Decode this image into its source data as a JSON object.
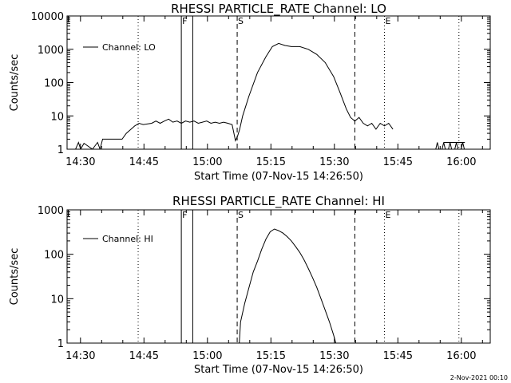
{
  "footer": {
    "timestamp": "2-Nov-2021 00:10"
  },
  "chart_data": [
    {
      "type": "line",
      "title": "RHESSI PARTICLE_RATE Channel: LO",
      "xlabel": "Start Time (07-Nov-15 14:26:50)",
      "ylabel": "Counts/sec",
      "x_unit": "minutes after 14:26:50",
      "xlim": [
        0,
        100
      ],
      "ylim": [
        1,
        10000
      ],
      "yscale": "log",
      "x_ticks": [
        3.17,
        18.17,
        33.17,
        48.17,
        63.17,
        78.17,
        93.17
      ],
      "x_tick_labels": [
        "14:30",
        "14:45",
        "15:00",
        "15:15",
        "15:30",
        "15:45",
        "16:00"
      ],
      "y_ticks": [
        1,
        10,
        100,
        1000,
        10000
      ],
      "y_tick_labels": [
        "1",
        "10",
        "100",
        "1000",
        "10000"
      ],
      "legend": {
        "position": "top-left",
        "entries": [
          "Channel: LO"
        ]
      },
      "markers": [
        {
          "label": "F",
          "x": 27.0,
          "style": "solid"
        },
        {
          "label": "",
          "x": 29.7,
          "style": "solid"
        },
        {
          "label": "S",
          "x": 40.2,
          "style": "dashed"
        },
        {
          "label": "",
          "x": 68.0,
          "style": "dashed"
        },
        {
          "label": "",
          "x": 16.8,
          "style": "dotted"
        },
        {
          "label": "E",
          "x": 75.0,
          "style": "dotted"
        },
        {
          "label": "",
          "x": 92.6,
          "style": "dotted"
        },
        {
          "label": "",
          "x": 0.3,
          "style": "corner"
        }
      ],
      "series": [
        {
          "name": "Channel: LO",
          "x": [
            2,
            2.7,
            3.2,
            4,
            6,
            7.2,
            7.8,
            8.4,
            10,
            13,
            14,
            16,
            17,
            18,
            20,
            21,
            22,
            23,
            24,
            25,
            26,
            27,
            28,
            29,
            30,
            31,
            32,
            33,
            34,
            35,
            36,
            37,
            38,
            39,
            39.8,
            40.3,
            40.8,
            41.5,
            43,
            45,
            47,
            48.5,
            50,
            51.5,
            53,
            55,
            57,
            59,
            61,
            63,
            64.5,
            66,
            67,
            68,
            69,
            70,
            71,
            72,
            73,
            74,
            75,
            76,
            77
          ],
          "y": [
            1,
            1.6,
            1,
            1.5,
            1,
            1.6,
            1,
            2,
            2,
            2,
            3,
            5,
            6,
            5.5,
            6,
            7,
            6,
            7,
            8,
            6.5,
            7,
            6,
            7,
            6.5,
            7,
            6,
            6.5,
            7,
            6,
            6.5,
            6,
            6.5,
            6,
            5.5,
            1.8,
            2.5,
            4,
            10,
            40,
            200,
            600,
            1200,
            1500,
            1300,
            1200,
            1200,
            1000,
            700,
            400,
            150,
            50,
            16,
            9,
            7,
            9,
            6,
            5,
            6,
            4,
            6,
            5,
            6,
            4
          ]
        },
        {
          "name": "",
          "x": [
            89,
            90.5,
            92,
            94
          ],
          "y": [
            1.6,
            1.6,
            1.6,
            1.6
          ]
        }
      ]
    },
    {
      "type": "line",
      "title": "RHESSI PARTICLE_RATE Channel: HI",
      "xlabel": "Start Time (07-Nov-15 14:26:50)",
      "ylabel": "Counts/sec",
      "x_unit": "minutes after 14:26:50",
      "xlim": [
        0,
        100
      ],
      "ylim": [
        1,
        1000
      ],
      "yscale": "log",
      "x_ticks": [
        3.17,
        18.17,
        33.17,
        48.17,
        63.17,
        78.17,
        93.17
      ],
      "x_tick_labels": [
        "14:30",
        "14:45",
        "15:00",
        "15:15",
        "15:30",
        "15:45",
        "16:00"
      ],
      "y_ticks": [
        1,
        10,
        100,
        1000
      ],
      "y_tick_labels": [
        "1",
        "10",
        "100",
        "1000"
      ],
      "legend": {
        "position": "top-left",
        "entries": [
          "Channel: HI"
        ]
      },
      "markers": [
        {
          "label": "F",
          "x": 27.0,
          "style": "solid"
        },
        {
          "label": "",
          "x": 29.7,
          "style": "solid"
        },
        {
          "label": "S",
          "x": 40.2,
          "style": "dashed"
        },
        {
          "label": "",
          "x": 68.0,
          "style": "dashed"
        },
        {
          "label": "",
          "x": 16.8,
          "style": "dotted"
        },
        {
          "label": "E",
          "x": 75.0,
          "style": "dotted"
        },
        {
          "label": "",
          "x": 92.6,
          "style": "dotted"
        },
        {
          "label": "",
          "x": 0.3,
          "style": "corner"
        }
      ],
      "series": [
        {
          "name": "Channel: HI",
          "x": [
            40.7,
            41,
            42,
            43,
            44,
            45,
            46,
            47,
            48,
            49,
            50,
            51,
            52,
            53,
            54,
            55,
            56,
            57,
            58,
            59,
            60,
            61,
            62,
            63,
            63.5
          ],
          "y": [
            1,
            3,
            8,
            18,
            40,
            70,
            130,
            220,
            320,
            370,
            340,
            300,
            250,
            200,
            150,
            110,
            75,
            48,
            30,
            18,
            10,
            5.5,
            3,
            1.5,
            1
          ]
        }
      ]
    }
  ]
}
